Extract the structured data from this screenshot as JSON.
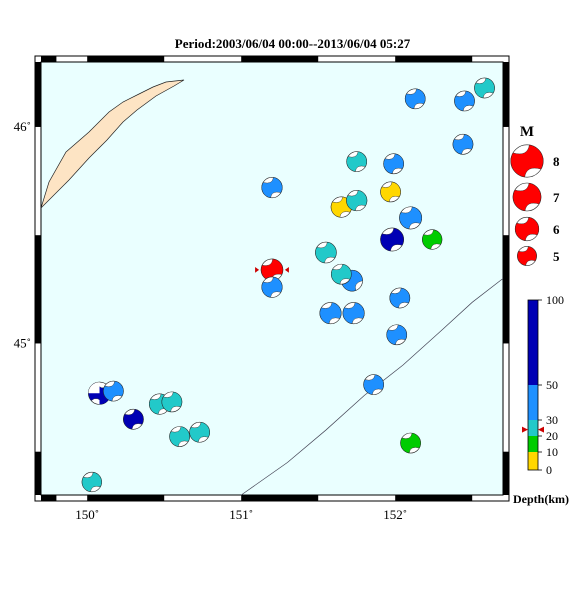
{
  "title": "Period:2003/06/04 00:00--2013/06/04 05:27",
  "x_ticks": [
    {
      "label": "150˚",
      "lon": 150
    },
    {
      "label": "151˚",
      "lon": 151
    },
    {
      "label": "152˚",
      "lon": 152
    }
  ],
  "y_ticks": [
    {
      "label": "46˚",
      "lat": 46
    },
    {
      "label": "45˚",
      "lat": 45
    }
  ],
  "extent": {
    "lon_min": 149.7,
    "lon_max": 152.7,
    "lat_min": 44.3,
    "lat_max": 46.3
  },
  "colors": {
    "ocean": "#eaffff",
    "land": "#fde4c4",
    "very_shallow": "#ffd700",
    "shallow": "#00cc00",
    "intermediate_cyan": "#22c9c9",
    "intermediate_blue": "#1e90ff",
    "deep": "#0000b4"
  },
  "magnitude_legend": {
    "title": "M",
    "items": [
      {
        "label": "8",
        "mag": 8
      },
      {
        "label": "7",
        "mag": 7
      },
      {
        "label": "6",
        "mag": 6
      },
      {
        "label": "5",
        "mag": 5
      }
    ]
  },
  "depth_scale": {
    "title": "Depth(km)",
    "ticks": [
      {
        "label": "100",
        "value": 100
      },
      {
        "label": "50",
        "value": 50
      },
      {
        "label": "30",
        "value": 30
      },
      {
        "label": "20",
        "value": 20
      },
      {
        "label": "10",
        "value": 10
      },
      {
        "label": "0",
        "value": 0
      }
    ],
    "marker_value": 24
  },
  "events": [
    {
      "lon": 151.2,
      "lat": 45.34,
      "depth": 24,
      "mag": 5.6,
      "color": "#ff0000",
      "angle": 155,
      "marked": true
    },
    {
      "lon": 151.2,
      "lat": 45.26,
      "depth": 38,
      "mag": 5.3,
      "color": "#1e90ff",
      "angle": 150
    },
    {
      "lon": 151.2,
      "lat": 45.72,
      "depth": 40,
      "mag": 5.3,
      "color": "#1e90ff",
      "angle": 150
    },
    {
      "lon": 151.55,
      "lat": 45.42,
      "depth": 35,
      "mag": 5.4,
      "color": "#22c9c9",
      "angle": 150
    },
    {
      "lon": 151.58,
      "lat": 45.14,
      "depth": 40,
      "mag": 5.5,
      "color": "#1e90ff",
      "angle": 150
    },
    {
      "lon": 151.73,
      "lat": 45.14,
      "depth": 40,
      "mag": 5.5,
      "color": "#1e90ff",
      "angle": 150
    },
    {
      "lon": 151.72,
      "lat": 45.29,
      "depth": 40,
      "mag": 5.4,
      "color": "#1e90ff",
      "angle": 180
    },
    {
      "lon": 151.65,
      "lat": 45.32,
      "depth": 32,
      "mag": 5.2,
      "color": "#22c9c9",
      "angle": 150
    },
    {
      "lon": 151.65,
      "lat": 45.63,
      "depth": 5,
      "mag": 5.3,
      "color": "#ffd700",
      "angle": 150
    },
    {
      "lon": 151.75,
      "lat": 45.66,
      "depth": 32,
      "mag": 5.3,
      "color": "#22c9c9",
      "angle": 150
    },
    {
      "lon": 151.75,
      "lat": 45.84,
      "depth": 32,
      "mag": 5.2,
      "color": "#22c9c9",
      "angle": 150
    },
    {
      "lon": 151.99,
      "lat": 45.83,
      "depth": 40,
      "mag": 5.2,
      "color": "#1e90ff",
      "angle": 150
    },
    {
      "lon": 151.97,
      "lat": 45.7,
      "depth": 5,
      "mag": 5.2,
      "color": "#ffd700",
      "angle": 150
    },
    {
      "lon": 152.13,
      "lat": 46.13,
      "depth": 40,
      "mag": 5.2,
      "color": "#1e90ff",
      "angle": 150
    },
    {
      "lon": 152.45,
      "lat": 46.12,
      "depth": 40,
      "mag": 5.2,
      "color": "#1e90ff",
      "angle": 150
    },
    {
      "lon": 152.58,
      "lat": 46.18,
      "depth": 32,
      "mag": 5.2,
      "color": "#22c9c9",
      "angle": 150
    },
    {
      "lon": 152.44,
      "lat": 45.92,
      "depth": 40,
      "mag": 5.2,
      "color": "#1e90ff",
      "angle": 150
    },
    {
      "lon": 152.1,
      "lat": 45.58,
      "depth": 40,
      "mag": 5.7,
      "color": "#1e90ff",
      "angle": 150
    },
    {
      "lon": 151.98,
      "lat": 45.48,
      "depth": 70,
      "mag": 5.9,
      "color": "#0000b4",
      "angle": 150
    },
    {
      "lon": 152.24,
      "lat": 45.48,
      "depth": 15,
      "mag": 5.1,
      "color": "#00cc00",
      "angle": 150
    },
    {
      "lon": 152.03,
      "lat": 45.21,
      "depth": 40,
      "mag": 5.2,
      "color": "#1e90ff",
      "angle": 150
    },
    {
      "lon": 152.01,
      "lat": 45.04,
      "depth": 40,
      "mag": 5.2,
      "color": "#1e90ff",
      "angle": 150
    },
    {
      "lon": 151.86,
      "lat": 44.81,
      "depth": 40,
      "mag": 5.2,
      "color": "#1e90ff",
      "angle": 150
    },
    {
      "lon": 152.1,
      "lat": 44.54,
      "depth": 15,
      "mag": 5.2,
      "color": "#00cc00",
      "angle": 150
    },
    {
      "lon": 150.08,
      "lat": 44.77,
      "depth": 75,
      "mag": 5.7,
      "color": "#0000b4",
      "angle": 110,
      "complex": true
    },
    {
      "lon": 150.17,
      "lat": 44.78,
      "depth": 40,
      "mag": 5.2,
      "color": "#1e90ff",
      "angle": 150
    },
    {
      "lon": 150.3,
      "lat": 44.65,
      "depth": 70,
      "mag": 5.2,
      "color": "#0000b4",
      "angle": 150
    },
    {
      "lon": 150.47,
      "lat": 44.72,
      "depth": 32,
      "mag": 5.3,
      "color": "#22c9c9",
      "angle": 150
    },
    {
      "lon": 150.55,
      "lat": 44.73,
      "depth": 32,
      "mag": 5.2,
      "color": "#22c9c9",
      "angle": 150
    },
    {
      "lon": 150.6,
      "lat": 44.57,
      "depth": 32,
      "mag": 5.2,
      "color": "#22c9c9",
      "angle": 150
    },
    {
      "lon": 150.73,
      "lat": 44.59,
      "depth": 32,
      "mag": 5.2,
      "color": "#22c9c9",
      "angle": 150
    },
    {
      "lon": 150.03,
      "lat": 44.36,
      "depth": 32,
      "mag": 5.1,
      "color": "#22c9c9",
      "angle": 150
    }
  ]
}
